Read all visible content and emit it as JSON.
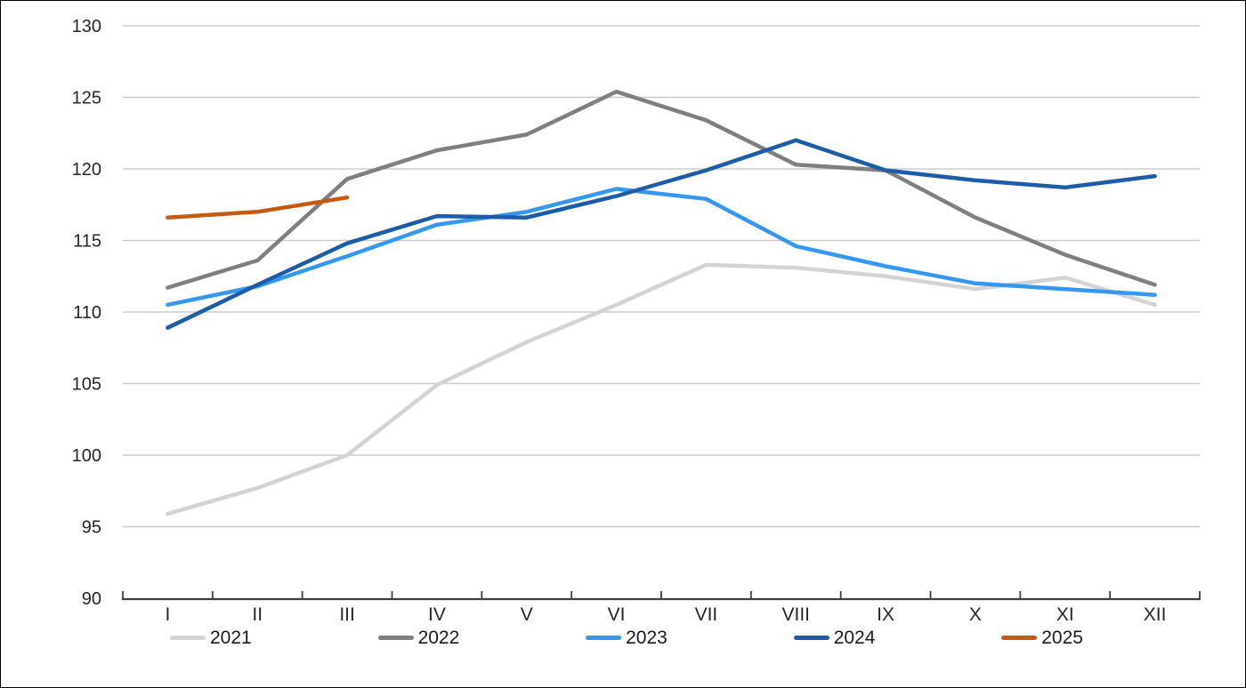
{
  "chart_data": {
    "type": "line",
    "title": "",
    "xlabel": "",
    "ylabel": "",
    "categories": [
      "I",
      "II",
      "III",
      "IV",
      "V",
      "VI",
      "VII",
      "VIII",
      "IX",
      "X",
      "XI",
      "XII"
    ],
    "series": [
      {
        "name": "2021",
        "color": "#D3D3D3",
        "values": [
          95.9,
          97.7,
          100.0,
          104.9,
          107.9,
          110.5,
          113.3,
          113.1,
          112.5,
          111.6,
          112.4,
          110.5
        ]
      },
      {
        "name": "2022",
        "color": "#7F7F7F",
        "values": [
          111.7,
          113.6,
          119.3,
          121.3,
          122.4,
          125.4,
          123.4,
          120.3,
          119.9,
          116.6,
          114.0,
          111.9
        ]
      },
      {
        "name": "2023",
        "color": "#3697F0",
        "values": [
          110.5,
          111.8,
          113.9,
          116.1,
          117.0,
          118.6,
          117.9,
          114.6,
          113.2,
          112.0,
          111.6,
          111.2
        ]
      },
      {
        "name": "2024",
        "color": "#1C5CA8",
        "values": [
          108.9,
          111.9,
          114.8,
          116.7,
          116.6,
          118.1,
          119.9,
          122.0,
          119.9,
          119.2,
          118.7,
          119.5
        ]
      },
      {
        "name": "2025",
        "color": "#C55A11",
        "values": [
          116.6,
          117.0,
          118.0,
          null,
          null,
          null,
          null,
          null,
          null,
          null,
          null,
          null
        ]
      }
    ],
    "ylim": [
      90,
      130
    ],
    "ytick_step": 5,
    "ytick_labels": [
      "90",
      "95",
      "100",
      "105",
      "110",
      "115",
      "120",
      "125",
      "130"
    ],
    "grid": "horizontal",
    "legend_position": "bottom",
    "colors": {
      "gridline": "#CBCBCB",
      "axis": "#3F3F3F",
      "tick_label": "#262626"
    }
  }
}
